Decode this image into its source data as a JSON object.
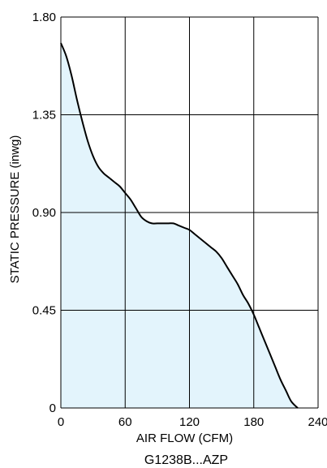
{
  "chart_data": {
    "type": "area",
    "title": "",
    "caption": "G1238B...AZP",
    "xlabel": "AIR FLOW (CFM)",
    "ylabel": "STATIC PRESSURE (inwg)",
    "xlim": [
      0,
      240
    ],
    "ylim": [
      0,
      1.8
    ],
    "x_ticks": [
      0,
      60,
      120,
      180,
      240
    ],
    "x_tick_labels": [
      "0",
      "60",
      "120",
      "180",
      "240"
    ],
    "y_ticks": [
      0,
      0.45,
      0.9,
      1.35,
      1.8
    ],
    "y_tick_labels": [
      "0",
      "0.45",
      "0.90",
      "1.35",
      "1.80"
    ],
    "grid": true,
    "fill_color": "#e3f4fc",
    "line_color": "#000000",
    "series": [
      {
        "x": [
          0,
          5,
          10,
          15,
          20,
          25,
          30,
          35,
          40,
          45,
          50,
          55,
          60,
          65,
          70,
          75,
          80,
          85,
          90,
          95,
          100,
          105,
          110,
          115,
          120,
          125,
          130,
          135,
          140,
          145,
          150,
          155,
          160,
          165,
          170,
          175,
          180,
          185,
          190,
          195,
          200,
          205,
          210,
          215,
          221
        ],
        "y": [
          1.68,
          1.62,
          1.53,
          1.42,
          1.32,
          1.23,
          1.16,
          1.11,
          1.08,
          1.06,
          1.04,
          1.02,
          0.99,
          0.96,
          0.92,
          0.88,
          0.86,
          0.85,
          0.85,
          0.85,
          0.85,
          0.85,
          0.84,
          0.83,
          0.82,
          0.8,
          0.78,
          0.76,
          0.74,
          0.72,
          0.69,
          0.65,
          0.61,
          0.57,
          0.52,
          0.48,
          0.43,
          0.37,
          0.31,
          0.25,
          0.19,
          0.13,
          0.08,
          0.03,
          0.0
        ]
      }
    ]
  }
}
